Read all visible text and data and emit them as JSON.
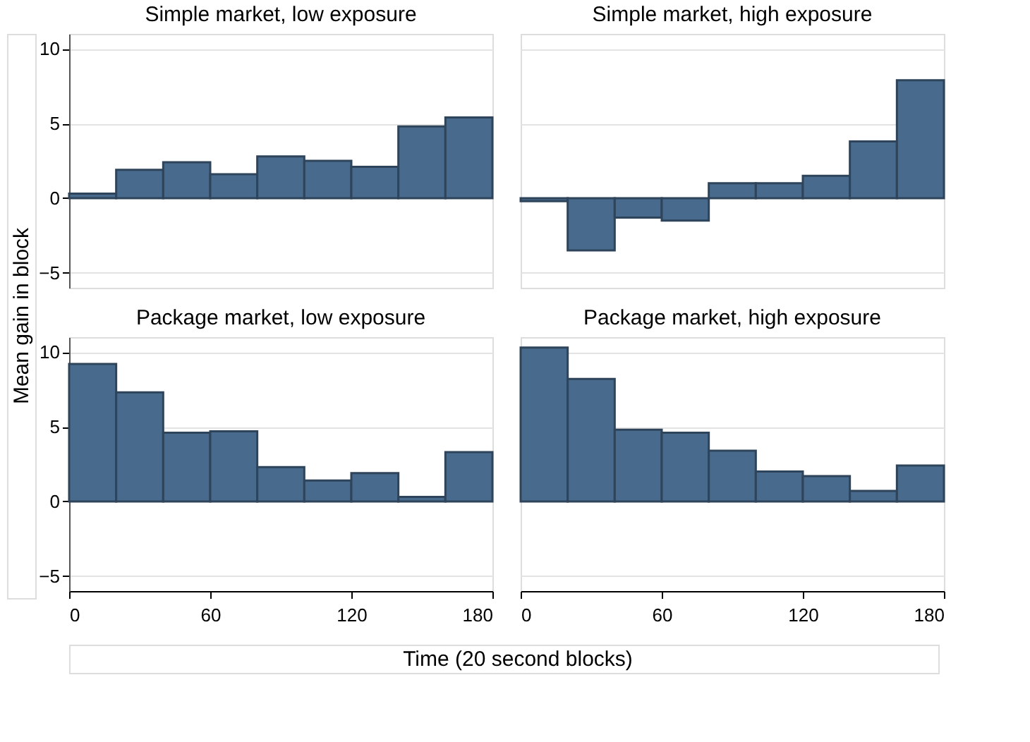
{
  "chart_data": [
    {
      "type": "histogram",
      "title": "Simple market, low exposure",
      "ylabel": "Mean gain in block",
      "bins": [
        0,
        20,
        40,
        60,
        80,
        100,
        120,
        140,
        160,
        180
      ],
      "values": [
        0.3,
        1.9,
        2.4,
        1.6,
        2.8,
        2.5,
        2.1,
        4.8,
        5.4
      ],
      "color": "#486a8c",
      "xlim": [
        0,
        180
      ],
      "xticks": [
        0,
        60,
        120,
        180
      ],
      "ylim": [
        -6,
        11
      ],
      "yticks": [
        -5,
        0,
        5,
        10
      ],
      "grid": "y",
      "tick_labels": "y"
    },
    {
      "type": "histogram",
      "title": "Simple market, high exposure",
      "bins": [
        0,
        20,
        40,
        60,
        80,
        100,
        120,
        140,
        160,
        180
      ],
      "values": [
        -0.2,
        -3.5,
        -1.3,
        -1.5,
        1.0,
        1.0,
        1.5,
        3.8,
        7.9
      ],
      "color": "#486a8c",
      "xlim": [
        0,
        180
      ],
      "xticks": [
        0,
        60,
        120,
        180
      ],
      "ylim": [
        -6,
        11
      ],
      "yticks": [
        -5,
        0,
        5,
        10
      ],
      "grid": "y",
      "tick_labels": false
    },
    {
      "type": "histogram",
      "title": "Package market, low exposure",
      "xlabel": "Time (20 second blocks)",
      "bins": [
        0,
        20,
        40,
        60,
        80,
        100,
        120,
        140,
        160,
        180
      ],
      "values": [
        9.2,
        7.3,
        4.6,
        4.7,
        2.3,
        1.4,
        1.9,
        0.3,
        3.3
      ],
      "color": "#486a8c",
      "xlim": [
        0,
        180
      ],
      "xticks": [
        0,
        60,
        120,
        180
      ],
      "ylim": [
        -6,
        11
      ],
      "yticks": [
        -5,
        0,
        5,
        10
      ],
      "grid": "y"
    },
    {
      "type": "histogram",
      "title": "Package market, high exposure",
      "bins": [
        0,
        20,
        40,
        60,
        80,
        100,
        120,
        140,
        160,
        180
      ],
      "values": [
        10.3,
        8.2,
        4.8,
        4.6,
        3.4,
        2.0,
        1.7,
        0.7,
        2.4
      ],
      "color": "#486a8c",
      "xlim": [
        0,
        180
      ],
      "xticks": [
        0,
        60,
        120,
        180
      ],
      "ylim": [
        -6,
        11
      ],
      "yticks": [
        -5,
        0,
        5,
        10
      ],
      "grid": "y",
      "tick_labels": "x"
    }
  ]
}
